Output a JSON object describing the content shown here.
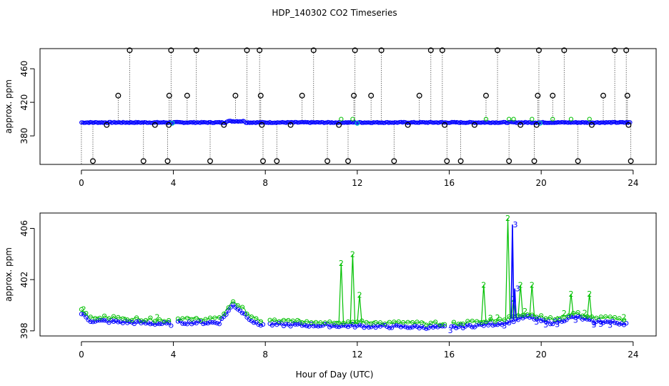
{
  "title": "HDP_140302  CO2 Timeseries",
  "xlabel": "Hour of Day (UTC)",
  "colors": {
    "raw": "#000000",
    "series2": "#00c000",
    "series3": "#0000ff",
    "flagged": "#00c0c0"
  },
  "chart_data": [
    {
      "type": "scatter",
      "panel": "top",
      "ylabel": "approx. ppm",
      "xlim": [
        -1.8,
        25.0
      ],
      "ylim": [
        346,
        484
      ],
      "xticks": [
        0,
        4,
        8,
        12,
        16,
        20,
        24
      ],
      "yticks": [
        380,
        420,
        460
      ],
      "baseline": 396,
      "series": [
        {
          "role": "spikes",
          "markers": "circle",
          "x": [
            0.5,
            1.1,
            1.6,
            2.1,
            2.7,
            3.2,
            3.75,
            3.8,
            3.82,
            3.9,
            4.6,
            5.0,
            5.6,
            6.2,
            6.7,
            7.2,
            7.75,
            7.8,
            7.85,
            7.9,
            8.5,
            9.1,
            9.6,
            10.1,
            10.7,
            11.2,
            11.6,
            11.85,
            11.9,
            12.6,
            13.05,
            13.6,
            14.2,
            14.7,
            15.2,
            15.7,
            15.8,
            15.9,
            16.5,
            17.1,
            17.6,
            18.1,
            18.6,
            19.1,
            19.7,
            19.8,
            19.85,
            19.9,
            20.5,
            21.0,
            21.6,
            22.2,
            22.7,
            23.2,
            23.7,
            23.75,
            23.8,
            23.9
          ],
          "y": [
            350,
            393,
            428,
            482,
            350,
            393,
            350,
            393,
            428,
            482,
            428,
            482,
            350,
            393,
            428,
            482,
            482,
            428,
            393,
            350,
            350,
            393,
            428,
            482,
            350,
            393,
            350,
            428,
            482,
            428,
            482,
            350,
            393,
            428,
            482,
            482,
            393,
            350,
            350,
            393,
            428,
            482,
            350,
            393,
            350,
            393,
            428,
            482,
            428,
            482,
            350,
            393,
            428,
            482,
            482,
            428,
            393,
            350
          ]
        }
      ]
    },
    {
      "type": "scatter",
      "panel": "bottom",
      "ylabel": "approx. ppm",
      "xlim": [
        -1.8,
        25.0
      ],
      "ylim": [
        397.6,
        407.2
      ],
      "xticks": [
        0,
        4,
        8,
        12,
        16,
        20,
        24
      ],
      "yticks": [
        398,
        402,
        406
      ],
      "gaps": [
        [
          3.95,
          4.15
        ],
        [
          7.9,
          8.1
        ],
        [
          15.85,
          16.05
        ],
        [
          23.75,
          24.2
        ]
      ],
      "series": [
        {
          "role": "series2",
          "markers": "digit-2",
          "spikes": [
            {
              "x": 11.3,
              "y": 403.3
            },
            {
              "x": 11.8,
              "y": 404.0
            },
            {
              "x": 12.1,
              "y": 400.8
            },
            {
              "x": 17.5,
              "y": 401.6
            },
            {
              "x": 18.55,
              "y": 406.8
            },
            {
              "x": 18.8,
              "y": 400.5
            },
            {
              "x": 19.1,
              "y": 401.6
            },
            {
              "x": 19.6,
              "y": 401.6
            },
            {
              "x": 21.3,
              "y": 400.9
            },
            {
              "x": 22.1,
              "y": 400.9
            }
          ]
        },
        {
          "role": "series3",
          "markers": "digit-3",
          "spikes": [
            {
              "x": 18.75,
              "y": 406.3
            },
            {
              "x": 18.85,
              "y": 401.3
            }
          ]
        }
      ]
    }
  ]
}
